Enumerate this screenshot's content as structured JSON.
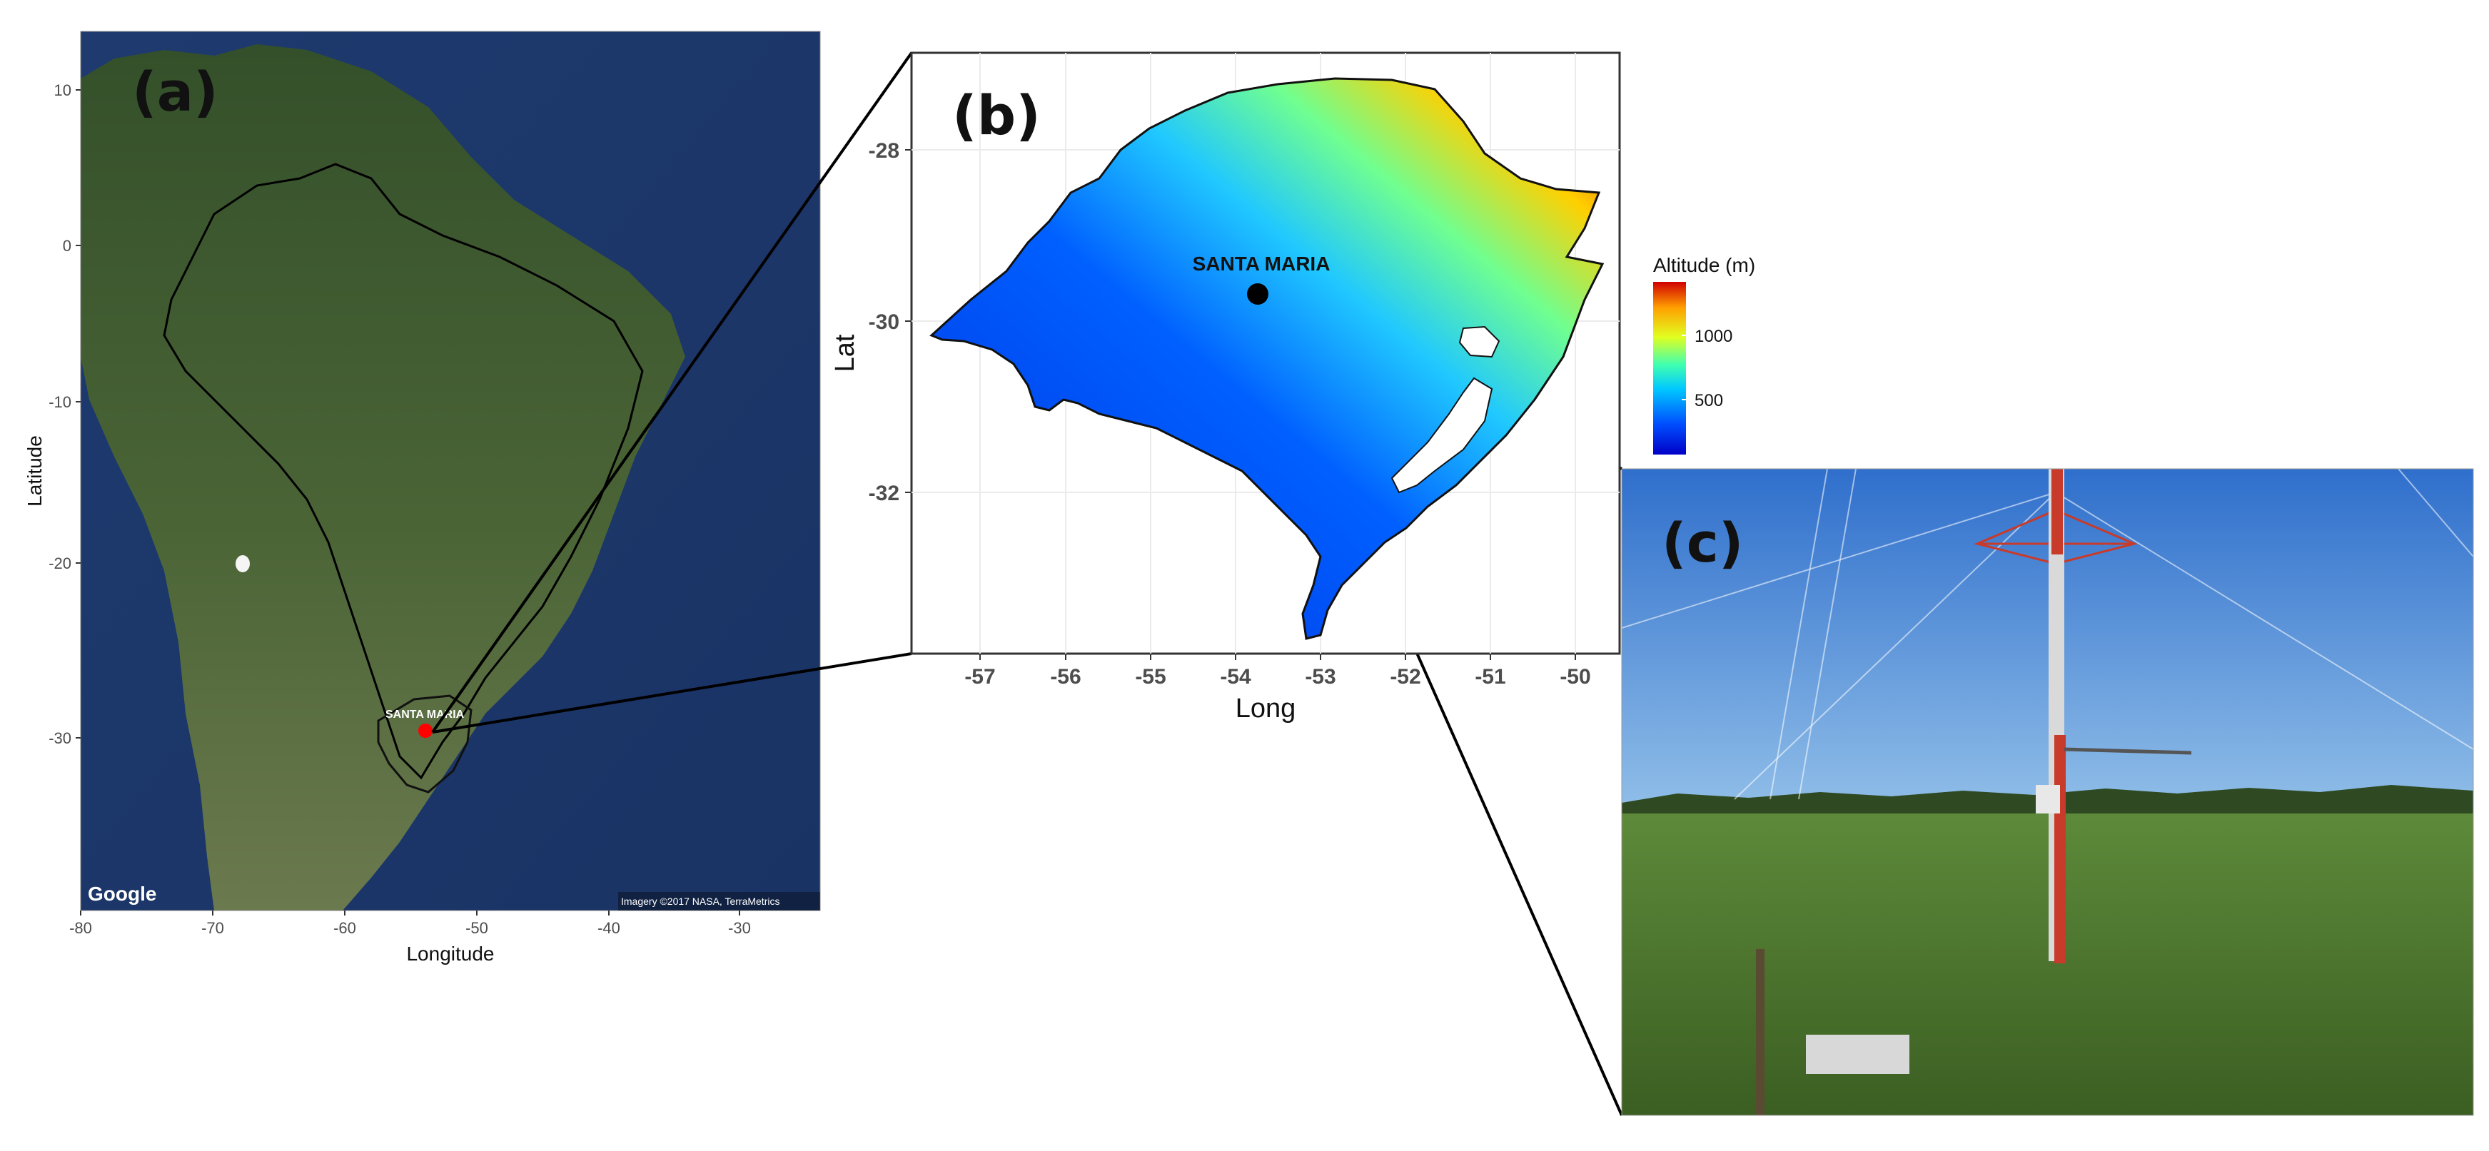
{
  "panel_a": {
    "letter": "(a)",
    "x_axis_label": "Longitude",
    "y_axis_label": "Latitude",
    "x_ticks": [
      "-80",
      "-70",
      "-60",
      "-50",
      "-40",
      "-30"
    ],
    "y_ticks": [
      "10",
      "0",
      "-10",
      "-20",
      "-30"
    ],
    "site_label": "SANTA MARIA",
    "attribution": "Imagery ©2017 NASA, TerraMetrics",
    "logo_text": "Google",
    "colors": {
      "ocean": "#1f3f76",
      "land": "#3f5b2e",
      "site_marker": "#ff0000"
    }
  },
  "panel_b": {
    "letter": "(b)",
    "x_axis_label": "Long",
    "y_axis_label": "Lat",
    "x_ticks": [
      "-57",
      "-56",
      "-55",
      "-54",
      "-53",
      "-52",
      "-51",
      "-50"
    ],
    "y_ticks": [
      "-28",
      "-30",
      "-32"
    ],
    "site_label": "SANTA MARIA",
    "legend_title": "Altitude (m)",
    "legend_ticks": [
      "1000",
      "500"
    ],
    "colorscale": [
      "#0000c8",
      "#0050ff",
      "#00c8ff",
      "#40ffb0",
      "#e0ff20",
      "#ffa000",
      "#d00000"
    ]
  },
  "panel_c": {
    "letter": "(c)",
    "colors": {
      "sky": "#3f86d6",
      "grass": "#4f7a2c",
      "tower": "#c83a2a"
    }
  }
}
